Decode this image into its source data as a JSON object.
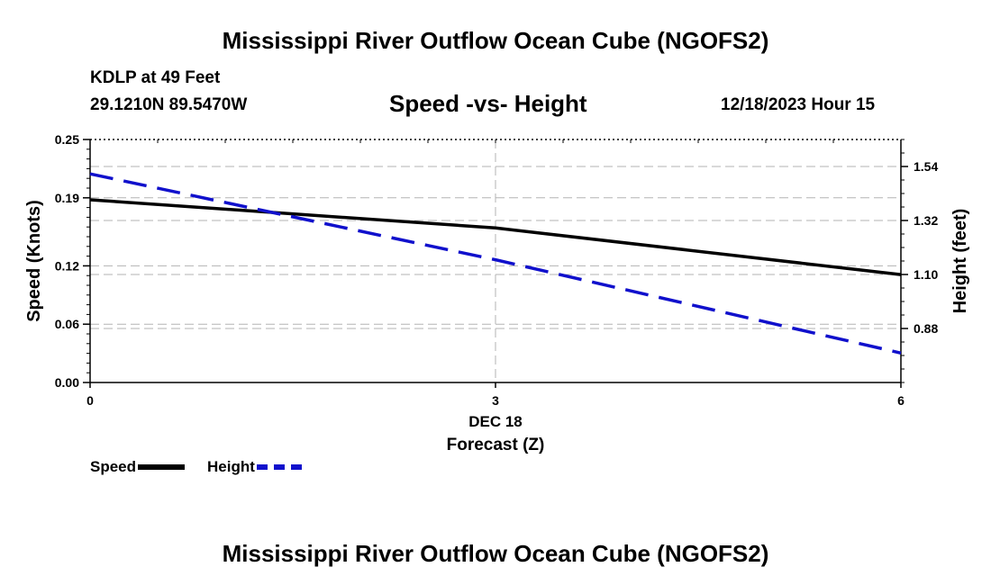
{
  "page_title": "Mississippi River Outflow Ocean Cube (NGOFS2)",
  "footer_title": "Mississippi River Outflow Ocean Cube (NGOFS2)",
  "station": "KDLP at 49 Feet",
  "coordinates": "29.1210N  89.5470W",
  "subtitle": "Speed -vs- Height",
  "datetime": "12/18/2023 Hour 15",
  "legend": {
    "speed_label": "Speed",
    "height_label": "Height"
  },
  "colors": {
    "speed": "#000000",
    "height": "#1010cc",
    "grid": "#b3b3b3"
  },
  "chart_data": {
    "type": "line",
    "title": "Speed -vs- Height",
    "xlabel": "Forecast (Z)",
    "x_date_label": "DEC 18",
    "ylabel_left": "Speed (Knots)",
    "ylabel_right": "Height (feet)",
    "x": [
      0,
      3,
      6
    ],
    "x_ticks": [
      "0",
      "3",
      "6"
    ],
    "xlim": [
      0,
      6
    ],
    "ylim_left": [
      0,
      0.25
    ],
    "yticks_left": [
      "0.00",
      "0.06",
      "0.12",
      "0.19",
      "0.25"
    ],
    "ylim_right": [
      0.66,
      1.65
    ],
    "yticks_right": [
      "0.88",
      "1.10",
      "1.32",
      "1.54"
    ],
    "grid": true,
    "series": [
      {
        "name": "Speed",
        "axis": "left",
        "style": "solid",
        "values": [
          0.188,
          0.159,
          0.111
        ]
      },
      {
        "name": "Height",
        "axis": "right",
        "style": "dashed",
        "values": [
          1.51,
          1.16,
          0.78
        ]
      }
    ]
  }
}
